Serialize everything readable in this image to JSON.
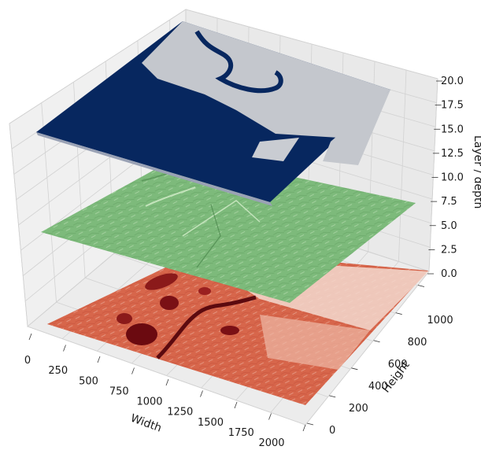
{
  "chart_data": {
    "type": "3d-surface-layers",
    "xlabel": "Width",
    "ylabel": "Height",
    "zlabel": "Layer / depth",
    "xlim": [
      0,
      2000
    ],
    "ylim": [
      0,
      1100
    ],
    "zlim": [
      0,
      20
    ],
    "x_ticks": [
      "0",
      "250",
      "500",
      "750",
      "1000",
      "1250",
      "1500",
      "1750",
      "2000"
    ],
    "y_ticks": [
      "0",
      "200",
      "400",
      "600",
      "800",
      "1000"
    ],
    "z_ticks": [
      "0.0",
      "2.5",
      "5.0",
      "7.5",
      "10.0",
      "12.5",
      "15.0",
      "17.5",
      "20.0"
    ],
    "grid": true,
    "layers": [
      {
        "z": 0,
        "colormap": "Reds",
        "base_color": "#d4654a",
        "light_color": "#f6e4dc",
        "dark_color": "#6b0a10"
      },
      {
        "z": 10,
        "colormap": "Greens",
        "base_color": "#7cb87b",
        "light_color": "#b7dcae",
        "dark_color": "#3f7a42"
      },
      {
        "z": 20,
        "colormap": "binary-blue",
        "base_color": "#bfc4cc",
        "dark_color": "#07275f"
      }
    ]
  }
}
